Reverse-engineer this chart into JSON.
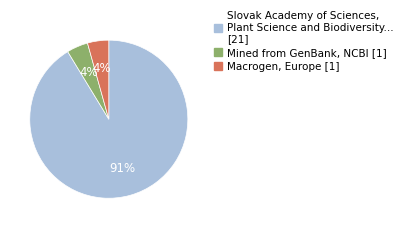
{
  "labels": [
    "Slovak Academy of Sciences,\nPlant Science and Biodiversity...\n[21]",
    "Mined from GenBank, NCBI [1]",
    "Macrogen, Europe [1]"
  ],
  "values": [
    21,
    1,
    1
  ],
  "colors": [
    "#a8bfdc",
    "#8db06b",
    "#d9735a"
  ],
  "text_color": "white",
  "background_color": "#ffffff",
  "legend_fontsize": 7.5,
  "autopct_fontsize": 8.5
}
